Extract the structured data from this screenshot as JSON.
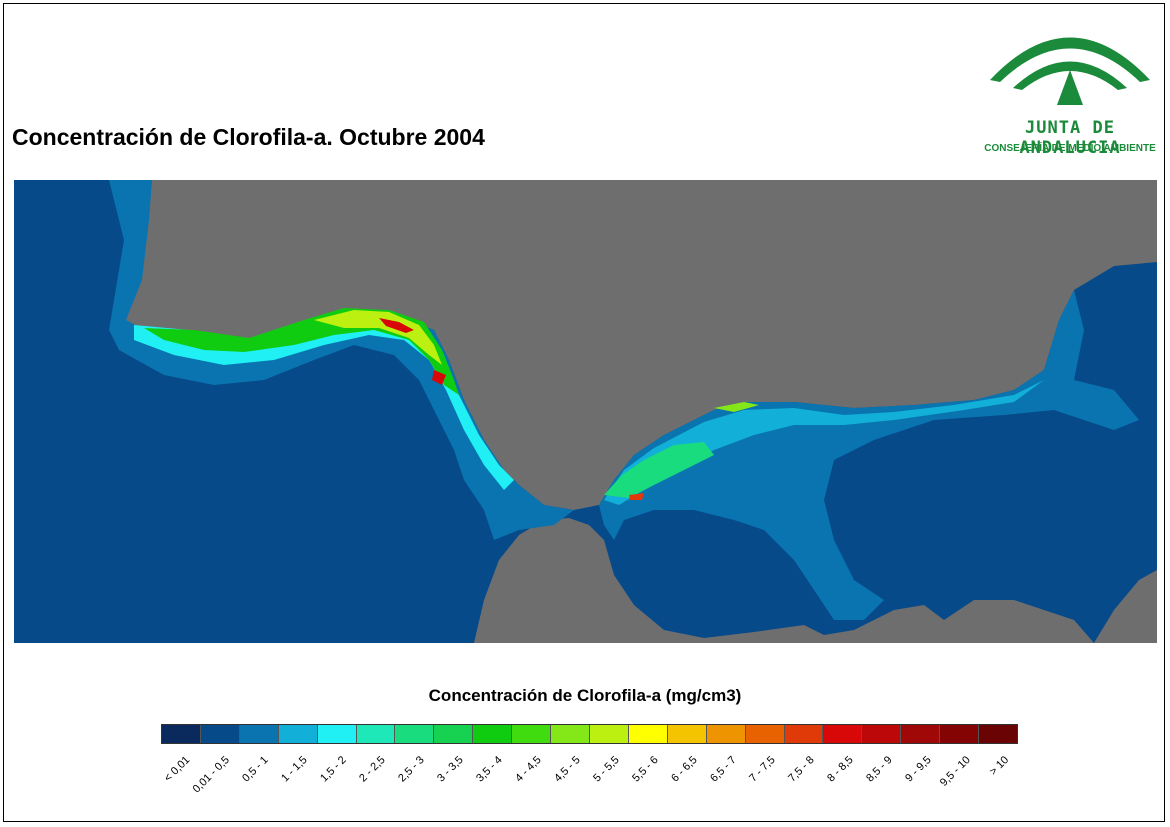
{
  "title": "Concentración de Clorofila-a. Octubre 2004",
  "logo": {
    "name": "JUNTA DE ANDALUCIA",
    "subtitle": "CONSEJERÍA DE MEDIO AMBIENTE",
    "color": "#1b8a3a"
  },
  "map": {
    "land_color": "#6e6e6e",
    "sea_base_color": "#064a8a"
  },
  "legend": {
    "title": "Concentración de Clorofila-a (mg/cm3)",
    "classes": [
      {
        "label": "< 0,01",
        "color": "#0a2a5e"
      },
      {
        "label": "0,01 - 0,5",
        "color": "#064a8a"
      },
      {
        "label": "0,5 - 1",
        "color": "#0a74b0"
      },
      {
        "label": "1 - 1,5",
        "color": "#12b0d8"
      },
      {
        "label": "1,5 - 2",
        "color": "#20f0f4"
      },
      {
        "label": "2 - 2,5",
        "color": "#1fe8b8"
      },
      {
        "label": "2,5 - 3",
        "color": "#18dc7e"
      },
      {
        "label": "3 - 3,5",
        "color": "#16d250"
      },
      {
        "label": "3,5 - 4",
        "color": "#10cc10"
      },
      {
        "label": "4 - 4,5",
        "color": "#40dc10"
      },
      {
        "label": "4,5 - 5",
        "color": "#84e818"
      },
      {
        "label": "5 - 5,5",
        "color": "#bcf010"
      },
      {
        "label": "5,5 - 6",
        "color": "#ffff00"
      },
      {
        "label": "6 - 6,5",
        "color": "#f4c400"
      },
      {
        "label": "6,5 - 7",
        "color": "#ee9400"
      },
      {
        "label": "7 - 7,5",
        "color": "#e86200"
      },
      {
        "label": "7,5 - 8",
        "color": "#e03a08"
      },
      {
        "label": "8 - 8,5",
        "color": "#d80808"
      },
      {
        "label": "8,5 - 9",
        "color": "#bc0808"
      },
      {
        "label": "9 - 9,5",
        "color": "#a00808"
      },
      {
        "label": "9,5 - 10",
        "color": "#840404"
      },
      {
        "label": "> 10",
        "color": "#6a0404"
      }
    ]
  }
}
